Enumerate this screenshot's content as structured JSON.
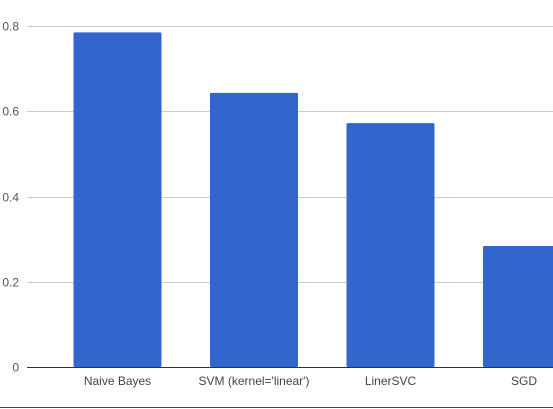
{
  "chart_data": {
    "type": "bar",
    "categories": [
      "Naive Bayes",
      "SVM (kernel='linear')",
      "LinerSVC",
      "SGD"
    ],
    "values": [
      0.785,
      0.643,
      0.572,
      0.284
    ],
    "ylim": [
      0,
      0.8
    ],
    "yticks": [
      0,
      0.2,
      0.4,
      0.6,
      0.8
    ],
    "ytick_labels": [
      "0",
      "0.2",
      "0.4",
      "0.6",
      "0.8"
    ],
    "grid": true,
    "bar_color": "#3366cc"
  }
}
